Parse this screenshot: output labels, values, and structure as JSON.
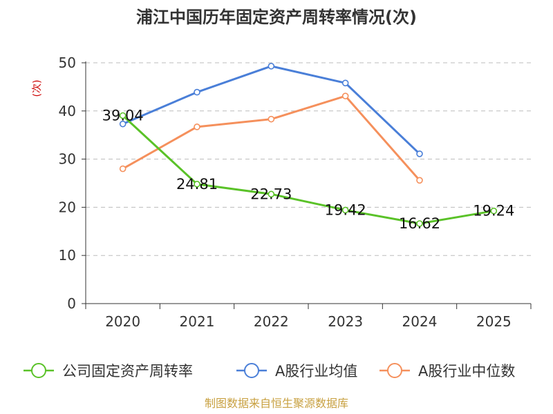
{
  "chart_data": {
    "type": "line",
    "title": "浦江中国历年固定资产周转率情况(次)",
    "ylabel": "(次)",
    "xlabel": "",
    "categories": [
      "2020",
      "2021",
      "2022",
      "2023",
      "2024",
      "2025"
    ],
    "ylim": [
      0,
      50
    ],
    "yticks": [
      0,
      10,
      20,
      30,
      40,
      50
    ],
    "grid": true,
    "legend_position": "bottom",
    "series": [
      {
        "name": "公司固定资产周转率",
        "color": "#5ac228",
        "values": [
          39.04,
          24.81,
          22.73,
          19.42,
          16.62,
          19.24
        ],
        "labels": [
          "39.04",
          "24.81",
          "22.73",
          "19.42",
          "16.62",
          "19.24"
        ],
        "show_labels": true
      },
      {
        "name": "A股行业均值",
        "color": "#4a7fd8",
        "values": [
          37.3,
          43.9,
          49.3,
          45.8,
          31.1,
          null
        ],
        "show_labels": false
      },
      {
        "name": "A股行业中位数",
        "color": "#f5905c",
        "values": [
          28.0,
          36.7,
          38.3,
          43.1,
          25.6,
          null
        ],
        "show_labels": false
      }
    ]
  },
  "footer": {
    "source": "制图数据来自恒生聚源数据库"
  }
}
